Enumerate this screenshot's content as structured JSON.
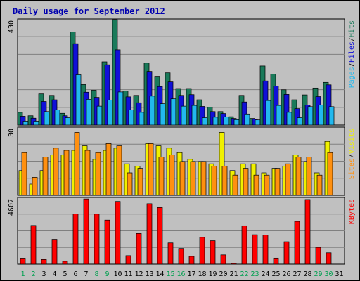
{
  "chart_data": {
    "type": "bar",
    "title": "Daily usage for September 2012",
    "categories": [
      "1",
      "2",
      "3",
      "4",
      "5",
      "6",
      "7",
      "8",
      "9",
      "10",
      "11",
      "12",
      "13",
      "14",
      "15",
      "16",
      "17",
      "18",
      "19",
      "20",
      "21",
      "22",
      "23",
      "24",
      "25",
      "26",
      "27",
      "28",
      "29",
      "30",
      "31"
    ],
    "weekend_days": [
      "1",
      "2",
      "8",
      "9",
      "15",
      "16",
      "22",
      "23",
      "29",
      "30"
    ],
    "panels": [
      {
        "id": "hits-files-pages",
        "ymax_label": "430",
        "ylim": [
          0,
          430
        ],
        "series": [
          {
            "name": "Hits",
            "color": "#1a7a5a",
            "values": [
              52,
              38,
              127,
              121,
              48,
              380,
              165,
              142,
              258,
              430,
              139,
              121,
              253,
              199,
              213,
              149,
              149,
              103,
              73,
              55,
              34,
              121,
              27,
              241,
              208,
              144,
              103,
              123,
              151,
              174
            ]
          },
          {
            "name": "Files",
            "color": "#1010d8",
            "values": [
              36,
              28,
              96,
              103,
              38,
              332,
              134,
              113,
              246,
              307,
              115,
              91,
              219,
              157,
              176,
              121,
              124,
              76,
              55,
              47,
              27,
              94,
              24,
              180,
              159,
              125,
              67,
              82,
              116,
              164
            ]
          },
          {
            "name": "Pages",
            "color": "#22b8ee",
            "values": [
              16,
              16,
              55,
              62,
              30,
              205,
              105,
              77,
              102,
              135,
              62,
              52,
              118,
              87,
              107,
              77,
              80,
              30,
              32,
              33,
              22,
              45,
              21,
              100,
              80,
              52,
              30,
              75,
              82,
              75
            ]
          }
        ]
      },
      {
        "id": "visits-sites",
        "ymax_label": "30",
        "ylim": [
          0,
          30
        ],
        "series": [
          {
            "name": "Visits",
            "color": "#f0f000",
            "values": [
              11,
              5,
              11,
              18,
              18,
              20,
              22,
              16,
              20,
              21,
              14,
              13,
              23,
              22,
              21,
              19,
              16,
              15,
              14,
              28,
              11,
              14,
              14,
              10,
              12,
              13,
              18,
              15,
              10,
              24
            ]
          },
          {
            "name": "Sites",
            "color": "#ff9010",
            "values": [
              19,
              8,
              17,
              21,
              20,
              28,
              20,
              19,
              23,
              22,
              10,
              12,
              23,
              17,
              18,
              15,
              15,
              15,
              13,
              13,
              9,
              12,
              9,
              9,
              12,
              14,
              17,
              17,
              9,
              19
            ]
          }
        ]
      },
      {
        "id": "kbytes",
        "ymax_label": "4607",
        "ylim": [
          0,
          4607
        ],
        "series": [
          {
            "name": "KBytes",
            "color": "#ff0000",
            "values": [
              419,
              2702,
              325,
              1737,
              198,
              3502,
              4551,
              3492,
              3077,
              4376,
              593,
              2139,
              4219,
              3951,
              1483,
              1094,
              542,
              1873,
              1638,
              645,
              55,
              2680,
              2053,
              2026,
              425,
              1566,
              2986,
              4511,
              1169,
              795
            ]
          }
        ]
      }
    ],
    "separator": "/"
  }
}
